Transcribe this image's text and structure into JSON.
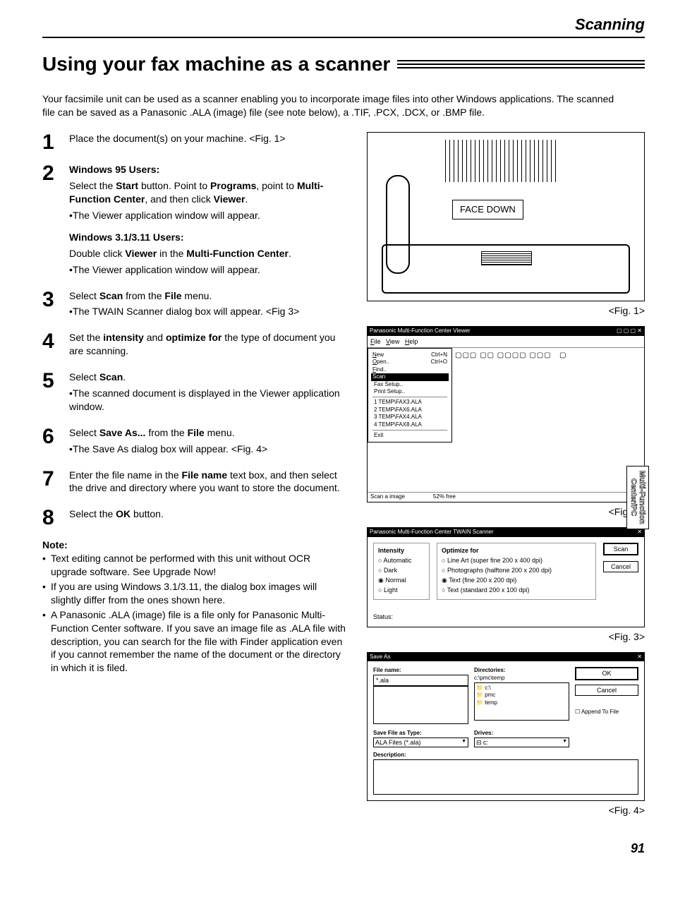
{
  "header": {
    "section": "Scanning"
  },
  "title": "Using your fax machine as a scanner",
  "intro": "Your facsimile unit can be used as a scanner enabling you to incorporate image files into other Windows applications. The scanned file can be saved as a Panasonic .ALA (image) file (see note below), a .TIF, .PCX, .DCX, or .BMP file.",
  "steps": [
    {
      "n": "1",
      "body": [
        {
          "t": "Place the document(s) on your machine. <Fig. 1>"
        }
      ]
    },
    {
      "n": "2",
      "body": [
        {
          "t": "Windows 95 Users:",
          "bold": true
        },
        {
          "html": "Select the <b>Start</b> button. Point to <b>Programs</b>, point to <b>Multi-Function Center</b>, and then click <b>Viewer</b>."
        },
        {
          "t": "•The Viewer application window will appear.",
          "raw": true
        },
        {
          "sp": true
        },
        {
          "t": "Windows 3.1/3.11 Users:",
          "bold": true
        },
        {
          "html": "Double click <b>Viewer</b> in the <b>Multi-Function Center</b>."
        },
        {
          "t": "•The Viewer application window will appear.",
          "raw": true
        }
      ]
    },
    {
      "n": "3",
      "body": [
        {
          "html": "Select <b>Scan</b> from the <b>File</b> menu. <Fig. 2>"
        },
        {
          "t": "•The TWAIN Scanner dialog box will appear. <Fig 3>",
          "raw": true
        }
      ]
    },
    {
      "n": "4",
      "body": [
        {
          "html": "Set the <b>intensity</b> and <b>optimize for</b> the type of document you are scanning."
        }
      ]
    },
    {
      "n": "5",
      "body": [
        {
          "html": "Select <b>Scan</b>."
        },
        {
          "t": "•The scanned document is displayed in the Viewer application window.",
          "raw": true
        }
      ]
    },
    {
      "n": "6",
      "body": [
        {
          "html": "Select <b>Save As...</b> from the <b>File</b> menu."
        },
        {
          "t": "•The Save As dialog box will appear. <Fig. 4>",
          "raw": true
        }
      ]
    },
    {
      "n": "7",
      "body": [
        {
          "html": "Enter the file name in the <b>File name</b> text box, and then select the drive and directory where you want to store the document."
        }
      ]
    },
    {
      "n": "8",
      "body": [
        {
          "html": "Select the <b>OK</b> button."
        }
      ]
    }
  ],
  "note": {
    "head": "Note:",
    "items": [
      "Text editing cannot be performed with this unit without OCR upgrade software. See Upgrade Now!",
      "If you are using Windows 3.1/3.11, the dialog box images will slightly differ from the ones shown here.",
      "A Panasonic .ALA (image) file is a file only for Panasonic Multi-Function Center software. If you save an image file as .ALA file with description, you can search for the file with Finder application even if you cannot remember the name of the document or the directory in which it is filed."
    ]
  },
  "fig1": {
    "label": "FACE DOWN",
    "caption": "<Fig. 1>"
  },
  "fig2": {
    "title": "Panasonic Multi-Function Center Viewer",
    "menubar": "File  View  Help",
    "filemenu_cols": {
      "l": [
        "New",
        "Open..",
        "Find.."
      ],
      "r": [
        "Ctrl+N",
        "Ctrl+O",
        ""
      ]
    },
    "scan_hl": "Scan",
    "items": [
      "Fax Setup..",
      "Print Setup..",
      "1 TEMP\\FAX3.ALA",
      "2 TEMP\\FAX6.ALA",
      "3 TEMP\\FAX4.ALA",
      "4 TEMP\\FAX8.ALA",
      "Exit"
    ],
    "status_l": "Scan a image",
    "status_r": "52% free",
    "caption": "<Fig. 2>"
  },
  "fig3": {
    "title": "Panasonic Multi-Function Center TWAIN Scanner",
    "intensity": {
      "label": "Intensity",
      "opts": [
        "Automatic",
        "Dark",
        "Normal",
        "Light"
      ],
      "selected": "Normal"
    },
    "optimize": {
      "label": "Optimize for",
      "opts": [
        "Line Art (super fine 200 x 400 dpi)",
        "Photographs (halftone 200 x 200 dpi)",
        "Text (fine 200 x 200 dpi)",
        "Text (standard 200 x 100 dpi)"
      ],
      "selected": "Text (fine 200 x 200 dpi)"
    },
    "btn_scan": "Scan",
    "btn_cancel": "Cancel",
    "status": "Status:",
    "caption": "<Fig. 3>"
  },
  "fig4": {
    "title": "Save As",
    "filename_lbl": "File name:",
    "filename_val": "*.ala",
    "dirs_lbl": "Directories:",
    "dirs_path": "c:\\pmc\\temp",
    "dirs_list": [
      "📁 c:\\",
      "📁 pmc",
      "📁 temp"
    ],
    "type_lbl": "Save File as Type:",
    "type_val": "ALA Files (*.ala)",
    "drives_lbl": "Drives:",
    "drives_val": "⊟ c:",
    "desc_lbl": "Description:",
    "btn_ok": "OK",
    "btn_cancel": "Cancel",
    "append": "Append To File",
    "caption": "<Fig. 4>"
  },
  "sidetab": {
    "l1": "Multi-Function",
    "l2": "Center/PC"
  },
  "page": "91"
}
